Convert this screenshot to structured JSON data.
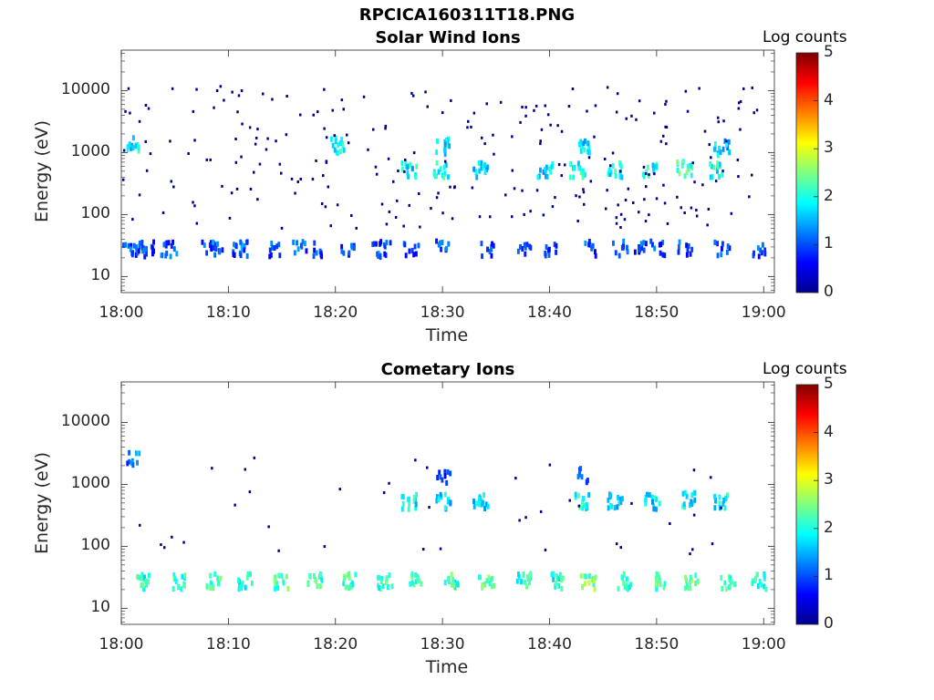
{
  "figure_title": "RPCICA160311T18.PNG",
  "colorbar": {
    "label": "Log counts",
    "ticks": [
      "0",
      "1",
      "2",
      "3",
      "4",
      "5"
    ]
  },
  "panels": [
    {
      "title": "Solar Wind Ions",
      "xlabel": "Time",
      "ylabel": "Energy (eV)"
    },
    {
      "title": "Cometary Ions",
      "xlabel": "Time",
      "ylabel": "Energy (eV)"
    }
  ],
  "colors": {
    "low": "#00008f",
    "mid": "#00ffff",
    "high": "#800000",
    "axis": "#262626"
  },
  "chart_data": [
    {
      "type": "heatmap",
      "title": "Solar Wind Ions",
      "xlabel": "Time",
      "ylabel": "Energy (eV)",
      "x_tick_labels": [
        "18:00",
        "18:10",
        "18:20",
        "18:30",
        "18:40",
        "18:50",
        "19:00"
      ],
      "y_tick_labels": [
        "10",
        "100",
        "1000",
        "10000"
      ],
      "y_scale": "log",
      "xlim_minutes": [
        0,
        61
      ],
      "ylim": [
        5.5,
        45000
      ],
      "colorbar": {
        "label": "Log counts",
        "range": [
          0,
          5
        ]
      },
      "cells": [
        [
          0.5,
          28,
          1.0
        ],
        [
          1.5,
          27,
          0.8
        ],
        [
          2.2,
          28,
          1.0
        ],
        [
          3.5,
          27,
          0.9
        ],
        [
          4.5,
          28,
          1.0
        ],
        [
          8.0,
          28,
          1.0
        ],
        [
          8.7,
          27,
          1.0
        ],
        [
          11.0,
          28,
          1.0
        ],
        [
          11.5,
          28,
          1.1
        ],
        [
          14.0,
          28,
          0.9
        ],
        [
          16.5,
          28,
          1.0
        ],
        [
          18.0,
          28,
          0.9
        ],
        [
          21.0,
          28,
          1.0
        ],
        [
          23.5,
          28,
          0.9
        ],
        [
          24.5,
          27,
          1.0
        ],
        [
          27.0,
          28,
          1.0
        ],
        [
          30.0,
          28,
          1.0
        ],
        [
          34.0,
          28,
          0.9
        ],
        [
          37.5,
          28,
          1.0
        ],
        [
          40.0,
          28,
          1.0
        ],
        [
          43.5,
          28,
          1.0
        ],
        [
          46.5,
          28,
          1.0
        ],
        [
          48.5,
          28,
          0.9
        ],
        [
          50.0,
          28,
          1.0
        ],
        [
          52.5,
          28,
          0.9
        ],
        [
          56.0,
          28,
          1.0
        ],
        [
          59.5,
          28,
          1.0
        ],
        [
          26.8,
          520,
          1.8
        ],
        [
          29.8,
          520,
          1.9
        ],
        [
          33.5,
          520,
          1.8
        ],
        [
          39.5,
          520,
          1.7
        ],
        [
          42.5,
          520,
          2.0
        ],
        [
          46.0,
          520,
          1.9
        ],
        [
          49.3,
          520,
          2.0
        ],
        [
          52.5,
          540,
          2.2
        ],
        [
          55.5,
          520,
          1.9
        ],
        [
          1.0,
          1300,
          1.8
        ],
        [
          20.0,
          1300,
          1.9
        ],
        [
          30.0,
          1250,
          1.8
        ],
        [
          43.0,
          1250,
          1.7
        ],
        [
          56.0,
          1200,
          1.6
        ]
      ]
    },
    {
      "type": "heatmap",
      "title": "Cometary Ions",
      "xlabel": "Time",
      "ylabel": "Energy (eV)",
      "x_tick_labels": [
        "18:00",
        "18:10",
        "18:20",
        "18:30",
        "18:40",
        "18:50",
        "19:00"
      ],
      "y_tick_labels": [
        "10",
        "100",
        "1000",
        "10000"
      ],
      "y_scale": "log",
      "xlim_minutes": [
        0,
        61
      ],
      "ylim": [
        5.5,
        45000
      ],
      "colorbar": {
        "label": "Log counts",
        "range": [
          0,
          5
        ]
      },
      "cells": [
        [
          1.8,
          27,
          2.0
        ],
        [
          5.2,
          27,
          2.2
        ],
        [
          8.5,
          27,
          2.1
        ],
        [
          11.5,
          27,
          2.0
        ],
        [
          14.8,
          27,
          2.3
        ],
        [
          18.0,
          27,
          2.2
        ],
        [
          21.2,
          27,
          2.1
        ],
        [
          24.5,
          27,
          2.2
        ],
        [
          27.5,
          27,
          2.3
        ],
        [
          30.8,
          27,
          2.2
        ],
        [
          34.0,
          27,
          2.3
        ],
        [
          37.5,
          27,
          2.1
        ],
        [
          40.5,
          27,
          2.0
        ],
        [
          43.5,
          27,
          2.4
        ],
        [
          47.0,
          27,
          2.2
        ],
        [
          50.0,
          27,
          2.3
        ],
        [
          53.2,
          27,
          2.5
        ],
        [
          56.5,
          27,
          2.2
        ],
        [
          59.5,
          27,
          2.0
        ],
        [
          26.8,
          520,
          1.8
        ],
        [
          30.0,
          520,
          1.7
        ],
        [
          33.5,
          520,
          1.7
        ],
        [
          43.0,
          520,
          1.9
        ],
        [
          46.0,
          520,
          1.7
        ],
        [
          49.5,
          520,
          1.7
        ],
        [
          52.8,
          560,
          1.8
        ],
        [
          56.0,
          520,
          1.8
        ],
        [
          1.0,
          2500,
          1.2
        ],
        [
          30.0,
          1300,
          0.9
        ],
        [
          43.0,
          1350,
          0.9
        ]
      ]
    }
  ]
}
